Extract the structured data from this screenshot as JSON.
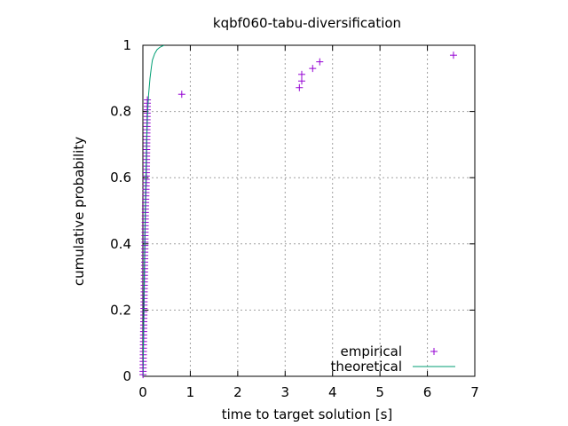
{
  "chart_data": {
    "type": "scatter",
    "title": "kqbf060-tabu-diversification",
    "xlabel": "time to target solution [s]",
    "ylabel": "cumulative probability",
    "xlim": [
      0,
      7
    ],
    "ylim": [
      0,
      1
    ],
    "x_ticks": [
      "0",
      "1",
      "2",
      "3",
      "4",
      "5",
      "6",
      "7"
    ],
    "y_ticks": [
      "0",
      "0.2",
      "0.4",
      "0.6",
      "0.8",
      "1"
    ],
    "grid": true,
    "legend_position": "bottom-right",
    "series": [
      {
        "name": "empirical",
        "style": "points",
        "marker": "plus",
        "color": "#9400d3",
        "points": [
          [
            0.003,
            0.005
          ],
          [
            0.004,
            0.015
          ],
          [
            0.005,
            0.025
          ],
          [
            0.006,
            0.035
          ],
          [
            0.007,
            0.045
          ],
          [
            0.008,
            0.055
          ],
          [
            0.009,
            0.065
          ],
          [
            0.01,
            0.075
          ],
          [
            0.011,
            0.085
          ],
          [
            0.012,
            0.095
          ],
          [
            0.013,
            0.105
          ],
          [
            0.014,
            0.115
          ],
          [
            0.015,
            0.125
          ],
          [
            0.016,
            0.135
          ],
          [
            0.017,
            0.145
          ],
          [
            0.018,
            0.155
          ],
          [
            0.019,
            0.165
          ],
          [
            0.02,
            0.175
          ],
          [
            0.021,
            0.185
          ],
          [
            0.022,
            0.195
          ],
          [
            0.023,
            0.205
          ],
          [
            0.024,
            0.215
          ],
          [
            0.025,
            0.225
          ],
          [
            0.026,
            0.235
          ],
          [
            0.027,
            0.245
          ],
          [
            0.028,
            0.255
          ],
          [
            0.029,
            0.265
          ],
          [
            0.03,
            0.275
          ],
          [
            0.031,
            0.285
          ],
          [
            0.032,
            0.295
          ],
          [
            0.033,
            0.305
          ],
          [
            0.034,
            0.315
          ],
          [
            0.035,
            0.325
          ],
          [
            0.036,
            0.335
          ],
          [
            0.037,
            0.345
          ],
          [
            0.038,
            0.355
          ],
          [
            0.039,
            0.365
          ],
          [
            0.04,
            0.375
          ],
          [
            0.041,
            0.385
          ],
          [
            0.042,
            0.395
          ],
          [
            0.043,
            0.405
          ],
          [
            0.044,
            0.415
          ],
          [
            0.045,
            0.425
          ],
          [
            0.046,
            0.435
          ],
          [
            0.047,
            0.445
          ],
          [
            0.048,
            0.455
          ],
          [
            0.049,
            0.465
          ],
          [
            0.05,
            0.475
          ],
          [
            0.051,
            0.485
          ],
          [
            0.052,
            0.495
          ],
          [
            0.053,
            0.505
          ],
          [
            0.055,
            0.515
          ],
          [
            0.057,
            0.525
          ],
          [
            0.06,
            0.535
          ],
          [
            0.062,
            0.545
          ],
          [
            0.064,
            0.555
          ],
          [
            0.066,
            0.565
          ],
          [
            0.068,
            0.575
          ],
          [
            0.07,
            0.585
          ],
          [
            0.071,
            0.595
          ],
          [
            0.072,
            0.605
          ],
          [
            0.073,
            0.615
          ],
          [
            0.074,
            0.625
          ],
          [
            0.075,
            0.635
          ],
          [
            0.076,
            0.645
          ],
          [
            0.077,
            0.655
          ],
          [
            0.078,
            0.665
          ],
          [
            0.079,
            0.675
          ],
          [
            0.08,
            0.685
          ],
          [
            0.081,
            0.695
          ],
          [
            0.082,
            0.705
          ],
          [
            0.083,
            0.715
          ],
          [
            0.084,
            0.725
          ],
          [
            0.085,
            0.735
          ],
          [
            0.086,
            0.745
          ],
          [
            0.087,
            0.755
          ],
          [
            0.088,
            0.765
          ],
          [
            0.089,
            0.775
          ],
          [
            0.09,
            0.785
          ],
          [
            0.091,
            0.795
          ],
          [
            0.092,
            0.805
          ],
          [
            0.093,
            0.815
          ],
          [
            0.094,
            0.825
          ],
          [
            0.095,
            0.835
          ],
          [
            0.82,
            0.852
          ],
          [
            3.3,
            0.872
          ],
          [
            3.35,
            0.892
          ],
          [
            3.35,
            0.912
          ],
          [
            3.58,
            0.93
          ],
          [
            3.73,
            0.95
          ],
          [
            6.55,
            0.97
          ]
        ]
      },
      {
        "name": "theoretical",
        "style": "line",
        "color": "#009e73",
        "points": [
          [
            0.0,
            0.0
          ],
          [
            0.02,
            0.2
          ],
          [
            0.04,
            0.42
          ],
          [
            0.06,
            0.58
          ],
          [
            0.08,
            0.72
          ],
          [
            0.1,
            0.8
          ],
          [
            0.12,
            0.85
          ],
          [
            0.15,
            0.9
          ],
          [
            0.18,
            0.935
          ],
          [
            0.2,
            0.955
          ],
          [
            0.25,
            0.975
          ],
          [
            0.3,
            0.987
          ],
          [
            0.35,
            0.993
          ],
          [
            0.4,
            0.997
          ],
          [
            0.45,
            1.0
          ]
        ]
      }
    ]
  }
}
